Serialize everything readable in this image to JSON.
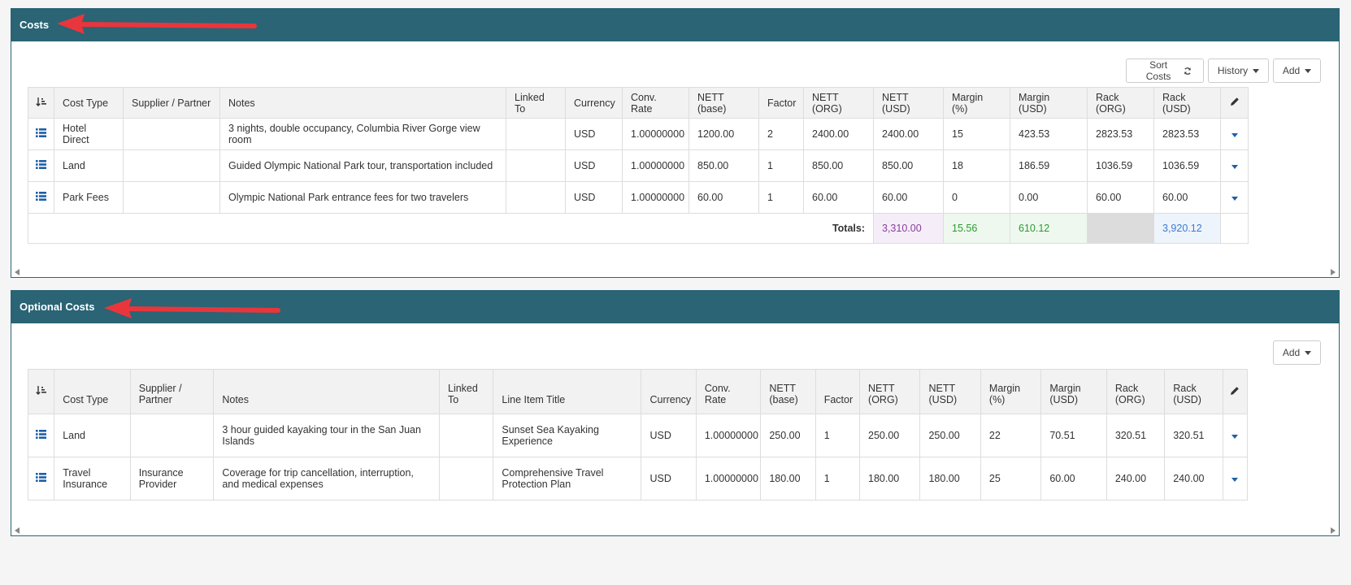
{
  "costs": {
    "title": "Costs",
    "buttons": {
      "sort": "Sort Costs",
      "history": "History",
      "add": "Add"
    },
    "headers": [
      "Cost Type",
      "Supplier / Partner",
      "Notes",
      "Linked To",
      "Currency",
      "Conv. Rate",
      "NETT (base)",
      "Factor",
      "NETT (ORG)",
      "NETT (USD)",
      "Margin (%)",
      "Margin (USD)",
      "Rack (ORG)",
      "Rack (USD)"
    ],
    "rows": [
      [
        "Hotel Direct",
        "",
        "3 nights, double occupancy, Columbia River Gorge view room",
        "",
        "USD",
        "1.00000000",
        "1200.00",
        "2",
        "2400.00",
        "2400.00",
        "15",
        "423.53",
        "2823.53",
        "2823.53"
      ],
      [
        "Land",
        "",
        "Guided Olympic National Park tour, transportation included",
        "",
        "USD",
        "1.00000000",
        "850.00",
        "1",
        "850.00",
        "850.00",
        "18",
        "186.59",
        "1036.59",
        "1036.59"
      ],
      [
        "Park Fees",
        "",
        "Olympic National Park entrance fees for two travelers",
        "",
        "USD",
        "1.00000000",
        "60.00",
        "1",
        "60.00",
        "60.00",
        "0",
        "0.00",
        "60.00",
        "60.00"
      ]
    ],
    "totals": {
      "label": "Totals:",
      "nett_usd": "3,310.00",
      "margin_pct": "15.56",
      "margin_usd": "610.12",
      "rack_org": "",
      "rack_usd": "3,920.12"
    }
  },
  "optional_costs": {
    "title": "Optional Costs",
    "buttons": {
      "add": "Add"
    },
    "headers": [
      "Cost Type",
      "Supplier / Partner",
      "Notes",
      "Linked To",
      "Line Item Title",
      "Currency",
      "Conv. Rate",
      "NETT (base)",
      "Factor",
      "NETT (ORG)",
      "NETT (USD)",
      "Margin (%)",
      "Margin (USD)",
      "Rack (ORG)",
      "Rack (USD)"
    ],
    "rows": [
      [
        "Land",
        "",
        "3 hour guided kayaking tour in the San Juan Islands",
        "",
        "Sunset Sea Kayaking Experience",
        "USD",
        "1.00000000",
        "250.00",
        "1",
        "250.00",
        "250.00",
        "22",
        "70.51",
        "320.51",
        "320.51"
      ],
      [
        "Travel Insurance",
        "Insurance Provider",
        "Coverage for trip cancellation, interruption, and medical expenses",
        "",
        "Comprehensive Travel Protection Plan",
        "USD",
        "1.00000000",
        "180.00",
        "1",
        "180.00",
        "180.00",
        "25",
        "60.00",
        "240.00",
        "240.00"
      ]
    ]
  },
  "icons": {
    "sort": "sort-amount-icon",
    "row": "list-icon",
    "edit": "pencil-icon",
    "refresh": "refresh-icon",
    "arrow": "red-annotation-arrow"
  },
  "colors": {
    "header": "#2a6475",
    "accent": "#1c5fa8",
    "arrow": "#e8363c",
    "totals_nett": "#f5eef8",
    "totals_margin": "#eef8ee",
    "totals_rack_org": "#dcdcdc",
    "totals_rack_usd": "#eef4fb",
    "margin_text": "#2e9a33",
    "nett_text": "#8a3d9e",
    "rack_text": "#3a7bd5"
  }
}
